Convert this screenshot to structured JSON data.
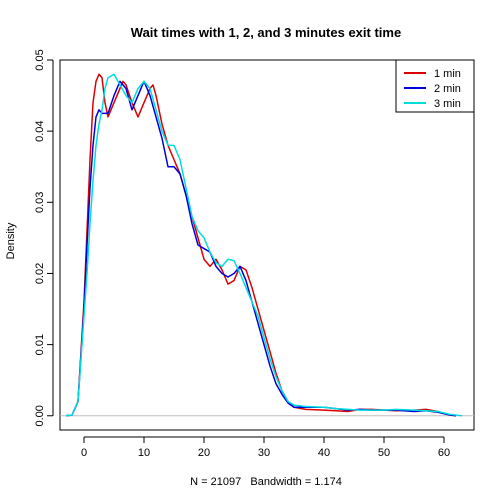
{
  "chart_data": {
    "type": "line",
    "title": "Wait times with 1, 2, and 3 minutes exit time",
    "xlabel": "N = 21097   Bandwidth = 1.174",
    "ylabel": "Density",
    "xlim": [
      -4,
      65
    ],
    "ylim": [
      -0.002,
      0.05
    ],
    "x_ticks": [
      0,
      10,
      20,
      30,
      40,
      50,
      60
    ],
    "y_ticks": [
      0.0,
      0.01,
      0.02,
      0.03,
      0.04,
      0.05
    ],
    "y_tick_labels": [
      "0.00",
      "0.01",
      "0.02",
      "0.03",
      "0.04",
      "0.05"
    ],
    "grid": false,
    "legend_position": "top-right",
    "baseline_y": 0,
    "series": [
      {
        "name": "1 min",
        "color": "#dd0000",
        "points": [
          [
            -3,
            0
          ],
          [
            -2,
            0.0001
          ],
          [
            -1,
            0.002
          ],
          [
            0,
            0.016
          ],
          [
            0.5,
            0.026
          ],
          [
            1,
            0.036
          ],
          [
            1.5,
            0.044
          ],
          [
            2,
            0.047
          ],
          [
            2.5,
            0.048
          ],
          [
            3,
            0.0475
          ],
          [
            3.5,
            0.044
          ],
          [
            4,
            0.042
          ],
          [
            5,
            0.044
          ],
          [
            6,
            0.046
          ],
          [
            6.5,
            0.047
          ],
          [
            7,
            0.0465
          ],
          [
            8,
            0.044
          ],
          [
            9,
            0.042
          ],
          [
            10,
            0.044
          ],
          [
            11,
            0.046
          ],
          [
            11.5,
            0.0465
          ],
          [
            12,
            0.045
          ],
          [
            13,
            0.041
          ],
          [
            14,
            0.038
          ],
          [
            15,
            0.036
          ],
          [
            16,
            0.034
          ],
          [
            17,
            0.031
          ],
          [
            18,
            0.028
          ],
          [
            19,
            0.025
          ],
          [
            20,
            0.022
          ],
          [
            21,
            0.021
          ],
          [
            22,
            0.022
          ],
          [
            23,
            0.0205
          ],
          [
            24,
            0.0185
          ],
          [
            25,
            0.019
          ],
          [
            26,
            0.021
          ],
          [
            27,
            0.0205
          ],
          [
            28,
            0.018
          ],
          [
            29,
            0.015
          ],
          [
            30,
            0.012
          ],
          [
            31,
            0.009
          ],
          [
            32,
            0.006
          ],
          [
            33,
            0.0035
          ],
          [
            34,
            0.002
          ],
          [
            35,
            0.0012
          ],
          [
            37,
            0.0009
          ],
          [
            40,
            0.0008
          ],
          [
            42,
            0.0007
          ],
          [
            44,
            0.0006
          ],
          [
            46,
            0.0009
          ],
          [
            48,
            0.0009
          ],
          [
            50,
            0.0008
          ],
          [
            52,
            0.0007
          ],
          [
            55,
            0.0008
          ],
          [
            57,
            0.0009
          ],
          [
            59,
            0.0006
          ],
          [
            60,
            0.0003
          ],
          [
            61,
            0.0001
          ],
          [
            62,
            0
          ]
        ]
      },
      {
        "name": "2 min",
        "color": "#0000dd",
        "points": [
          [
            -3,
            0
          ],
          [
            -2,
            0.0001
          ],
          [
            -1,
            0.002
          ],
          [
            0,
            0.015
          ],
          [
            0.5,
            0.024
          ],
          [
            1,
            0.032
          ],
          [
            1.5,
            0.038
          ],
          [
            2,
            0.042
          ],
          [
            2.5,
            0.043
          ],
          [
            3,
            0.0425
          ],
          [
            4,
            0.0425
          ],
          [
            5,
            0.045
          ],
          [
            6,
            0.047
          ],
          [
            7,
            0.046
          ],
          [
            8,
            0.043
          ],
          [
            9,
            0.045
          ],
          [
            10,
            0.047
          ],
          [
            11,
            0.045
          ],
          [
            12,
            0.042
          ],
          [
            13,
            0.039
          ],
          [
            14,
            0.035
          ],
          [
            15,
            0.035
          ],
          [
            16,
            0.034
          ],
          [
            17,
            0.031
          ],
          [
            18,
            0.027
          ],
          [
            19,
            0.024
          ],
          [
            20,
            0.0235
          ],
          [
            21,
            0.023
          ],
          [
            22,
            0.021
          ],
          [
            23,
            0.02
          ],
          [
            24,
            0.0195
          ],
          [
            25,
            0.02
          ],
          [
            26,
            0.021
          ],
          [
            27,
            0.019
          ],
          [
            28,
            0.016
          ],
          [
            29,
            0.013
          ],
          [
            30,
            0.01
          ],
          [
            31,
            0.007
          ],
          [
            32,
            0.0045
          ],
          [
            33,
            0.003
          ],
          [
            34,
            0.0018
          ],
          [
            35,
            0.0012
          ],
          [
            37,
            0.0012
          ],
          [
            40,
            0.0012
          ],
          [
            42,
            0.001
          ],
          [
            44,
            0.0008
          ],
          [
            46,
            0.0009
          ],
          [
            48,
            0.0008
          ],
          [
            50,
            0.0008
          ],
          [
            52,
            0.0008
          ],
          [
            55,
            0.0006
          ],
          [
            57,
            0.0007
          ],
          [
            59,
            0.0005
          ],
          [
            60,
            0.0003
          ],
          [
            61,
            0.0001
          ],
          [
            62,
            0
          ]
        ]
      },
      {
        "name": "3 min",
        "color": "#00dddd",
        "points": [
          [
            -3,
            0
          ],
          [
            -2,
            0.0001
          ],
          [
            -1,
            0.002
          ],
          [
            0,
            0.014
          ],
          [
            0.5,
            0.02
          ],
          [
            1,
            0.027
          ],
          [
            1.5,
            0.033
          ],
          [
            2,
            0.038
          ],
          [
            2.5,
            0.041
          ],
          [
            3,
            0.043
          ],
          [
            3.5,
            0.046
          ],
          [
            4,
            0.0475
          ],
          [
            5,
            0.048
          ],
          [
            6,
            0.0465
          ],
          [
            7,
            0.045
          ],
          [
            8,
            0.044
          ],
          [
            9,
            0.046
          ],
          [
            10,
            0.047
          ],
          [
            11,
            0.046
          ],
          [
            12,
            0.043
          ],
          [
            13,
            0.04
          ],
          [
            14,
            0.038
          ],
          [
            15,
            0.038
          ],
          [
            16,
            0.036
          ],
          [
            17,
            0.032
          ],
          [
            18,
            0.028
          ],
          [
            19,
            0.026
          ],
          [
            20,
            0.025
          ],
          [
            21,
            0.023
          ],
          [
            22,
            0.0215
          ],
          [
            23,
            0.021
          ],
          [
            24,
            0.022
          ],
          [
            25,
            0.0218
          ],
          [
            26,
            0.02
          ],
          [
            27,
            0.018
          ],
          [
            28,
            0.016
          ],
          [
            29,
            0.014
          ],
          [
            30,
            0.011
          ],
          [
            31,
            0.008
          ],
          [
            32,
            0.0055
          ],
          [
            33,
            0.0035
          ],
          [
            34,
            0.002
          ],
          [
            35,
            0.0015
          ],
          [
            37,
            0.0013
          ],
          [
            40,
            0.0012
          ],
          [
            42,
            0.001
          ],
          [
            44,
            0.0009
          ],
          [
            46,
            0.0008
          ],
          [
            48,
            0.0008
          ],
          [
            50,
            0.0008
          ],
          [
            52,
            0.0009
          ],
          [
            55,
            0.0008
          ],
          [
            57,
            0.0007
          ],
          [
            59,
            0.0006
          ],
          [
            60,
            0.0004
          ],
          [
            61,
            0.0002
          ],
          [
            62,
            0.0001
          ],
          [
            63,
            0
          ]
        ]
      }
    ]
  }
}
